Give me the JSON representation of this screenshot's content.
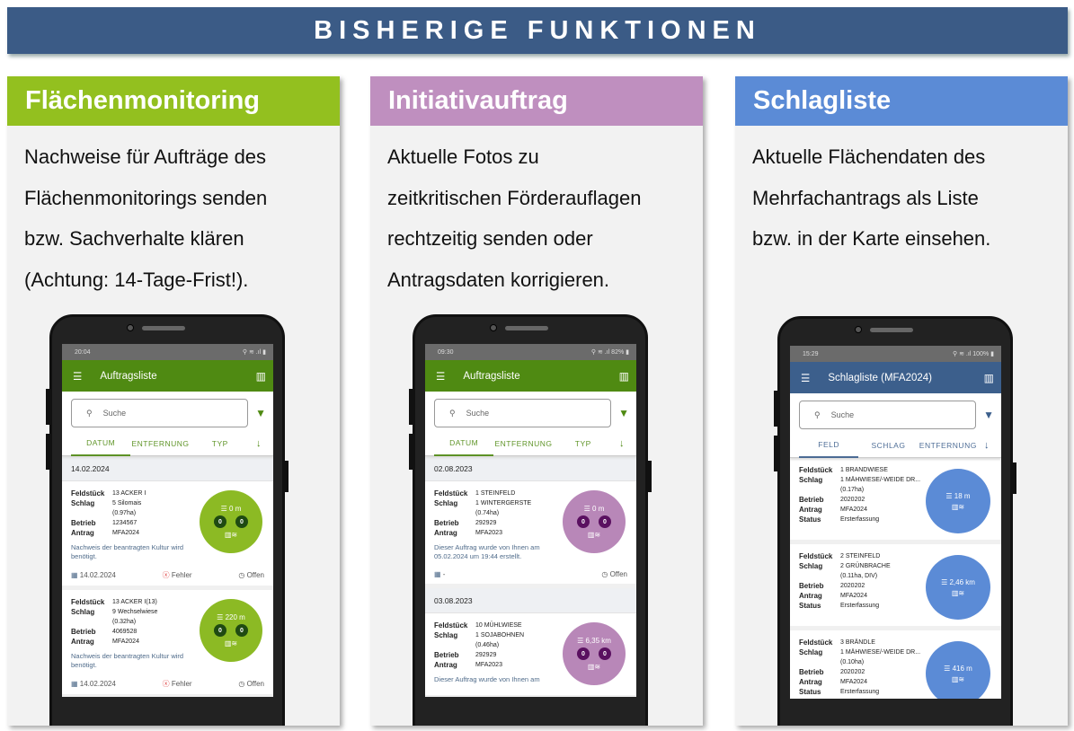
{
  "banner": "BISHERIGE FUNKTIONEN",
  "panels": [
    {
      "title": "Flächenmonitoring",
      "color": "#93c01f",
      "lines": [
        "Nachweise für Aufträge des",
        "Flächenmonitorings senden",
        "bzw. Sachverhalte klären",
        "(Achtung: 14-Tage-Frist!)."
      ],
      "phone": {
        "theme": "#4f8a12",
        "circle": "#8cba24",
        "badge": "#1f4a12",
        "time": "20:04",
        "status_icons": "⚲ ≋ .ıl ▮",
        "title": "Auftragsliste",
        "search_placeholder": "Suche",
        "tabs": [
          "DATUM",
          "ENTFERNUNG",
          "TYP"
        ],
        "active_tab": 0,
        "items": [
          {
            "date": "14.02.2024"
          },
          {
            "fields": [
              [
                "Feldstück",
                "13 ACKER I"
              ],
              [
                "Schlag",
                "5 Silomais"
              ],
              [
                "",
                "(0.97ha)"
              ],
              [
                "Betrieb",
                "1234567"
              ],
              [
                "Antrag",
                "MFA2024"
              ]
            ],
            "distance": "0 m",
            "counts": [
              "0",
              "0"
            ],
            "note": "Nachweis der beantragten Kultur wird benötigt.",
            "footer": {
              "date": "14.02.2024",
              "error": "Fehler",
              "status": "Offen"
            }
          },
          {
            "fields": [
              [
                "Feldstück",
                "13 ACKER I(13)"
              ],
              [
                "Schlag",
                "9 Wechselwiese"
              ],
              [
                "",
                "(0.32ha)"
              ],
              [
                "Betrieb",
                "4069528"
              ],
              [
                "Antrag",
                "MFA2024"
              ]
            ],
            "distance": "220 m",
            "counts": [
              "0",
              "0"
            ],
            "note": "Nachweis der beantragten Kultur wird benötigt.",
            "footer": {
              "date": "14.02.2024",
              "error": "Fehler",
              "status": "Offen"
            }
          }
        ]
      }
    },
    {
      "title": "Initiativauftrag",
      "color": "#bf8fbf",
      "lines": [
        "Aktuelle Fotos zu",
        "zeitkritischen Förderauflagen",
        "rechtzeitig senden oder",
        "Antragsdaten korrigieren."
      ],
      "phone": {
        "theme": "#4f8a12",
        "circle": "#b887b8",
        "badge": "#5a1060",
        "time": "09:30",
        "status_icons": "⚲ ≋ .ıl 82% ▮",
        "title": "Auftragsliste",
        "search_placeholder": "Suche",
        "tabs": [
          "DATUM",
          "ENTFERNUNG",
          "TYP"
        ],
        "active_tab": 0,
        "items": [
          {
            "date": "02.08.2023"
          },
          {
            "fields": [
              [
                "Feldstück",
                "1 STEINFELD"
              ],
              [
                "Schlag",
                "1 WINTERGERSTE"
              ],
              [
                "",
                "(0.74ha)"
              ],
              [
                "Betrieb",
                "292929"
              ],
              [
                "Antrag",
                "MFA2023"
              ]
            ],
            "distance": "0 m",
            "counts": [
              "0",
              "0"
            ],
            "note": "Dieser Auftrag wurde von Ihnen am 05.02.2024 um 19:44 erstellt.",
            "footer": {
              "date": "-",
              "error": "",
              "status": "Offen"
            }
          },
          {
            "date": "03.08.2023"
          },
          {
            "fields": [
              [
                "Feldstück",
                "10 MÜHLWIESE"
              ],
              [
                "Schlag",
                "1 SOJABOHNEN"
              ],
              [
                "",
                "(0.46ha)"
              ],
              [
                "Betrieb",
                "292929"
              ],
              [
                "Antrag",
                "MFA2023"
              ]
            ],
            "distance": "6,35 km",
            "counts": [
              "0",
              "0"
            ],
            "note": "Dieser Auftrag wurde von Ihnen am",
            "footer": null
          }
        ]
      }
    },
    {
      "title": "Schlagliste",
      "color": "#5b8bd6",
      "lines": [
        "Aktuelle Flächendaten des",
        "Mehrfachantrags als Liste",
        "bzw. in der Karte einsehen."
      ],
      "phone": {
        "theme": "#3c5f8c",
        "circle": "#5b8bd6",
        "badge": "",
        "time": "15:29",
        "status_icons": "⚲ ≋ .ıl 100% ▮",
        "title": "Schlagliste (MFA2024)",
        "search_placeholder": "Suche",
        "tabs": [
          "FELD",
          "SCHLAG",
          "ENTFERNUNG"
        ],
        "active_tab": 0,
        "items": [
          {
            "fields": [
              [
                "Feldstück",
                "1 BRANDWIESE"
              ],
              [
                "Schlag",
                "1 MÄHWIESE/-WEIDE DR..."
              ],
              [
                "",
                ""
              ],
              [
                "",
                "(0.17ha)"
              ],
              [
                "Betrieb",
                "2020202"
              ],
              [
                "Antrag",
                "MFA2024"
              ],
              [
                "Status",
                "Ersterfassung"
              ]
            ],
            "distance": "18 m"
          },
          {
            "fields": [
              [
                "Feldstück",
                "2 STEINFELD"
              ],
              [
                "Schlag",
                "2 GRÜNBRACHE"
              ],
              [
                "",
                ""
              ],
              [
                "",
                "(0.11ha, DIV)"
              ],
              [
                "Betrieb",
                "2020202"
              ],
              [
                "Antrag",
                "MFA2024"
              ],
              [
                "Status",
                "Ersterfassung"
              ]
            ],
            "distance": "2,46 km"
          },
          {
            "fields": [
              [
                "Feldstück",
                "3 BRÄNDLE"
              ],
              [
                "Schlag",
                "1 MÄHWIESE/-WEIDE DR..."
              ],
              [
                "",
                ""
              ],
              [
                "",
                "(0.10ha)"
              ],
              [
                "Betrieb",
                "2020202"
              ],
              [
                "Antrag",
                "MFA2024"
              ],
              [
                "Status",
                "Ersterfassung"
              ]
            ],
            "distance": "416 m"
          }
        ]
      }
    }
  ]
}
